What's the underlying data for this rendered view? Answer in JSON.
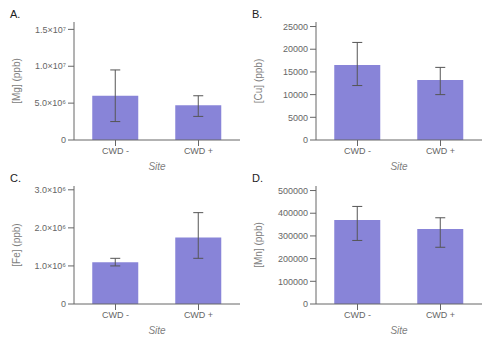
{
  "chart_data": [
    {
      "type": "bar",
      "title": "A.",
      "ylabel": "[Mg] (ppb)",
      "xlabel": "Site",
      "categories": [
        "CWD -",
        "CWD +"
      ],
      "values": [
        6000000,
        4700000
      ],
      "yerr_low": [
        3500000,
        1500000
      ],
      "yerr_high": [
        3500000,
        1300000
      ],
      "ylim": [
        0,
        16000000
      ],
      "yticks": [
        0,
        {
          "value": 5000000,
          "label": "5.0×10⁶"
        },
        {
          "value": 10000000,
          "label": "1.0×10⁷"
        },
        {
          "value": 15000000,
          "label": "1.5×10⁷"
        }
      ],
      "grid": false
    },
    {
      "type": "bar",
      "title": "B.",
      "ylabel": "[Cu] (ppb)",
      "xlabel": "Site",
      "categories": [
        "CWD -",
        "CWD +"
      ],
      "values": [
        16500,
        13200
      ],
      "yerr_low": [
        4500,
        3200
      ],
      "yerr_high": [
        5000,
        2800
      ],
      "ylim": [
        0,
        26000
      ],
      "yticks": [
        0,
        5000,
        10000,
        15000,
        20000,
        25000
      ],
      "grid": false
    },
    {
      "type": "bar",
      "title": "C.",
      "ylabel": "[Fe] (ppb)",
      "xlabel": "Site",
      "categories": [
        "CWD -",
        "CWD +"
      ],
      "values": [
        1100000,
        1750000
      ],
      "yerr_low": [
        100000,
        550000
      ],
      "yerr_high": [
        100000,
        650000
      ],
      "ylim": [
        0,
        3100000
      ],
      "yticks": [
        0,
        {
          "value": 1000000,
          "label": "1.0×10⁶"
        },
        {
          "value": 2000000,
          "label": "2.0×10⁶"
        },
        {
          "value": 3000000,
          "label": "3.0×10⁶"
        }
      ],
      "grid": false
    },
    {
      "type": "bar",
      "title": "D.",
      "ylabel": "[Mn] (ppb)",
      "xlabel": "Site",
      "categories": [
        "CWD -",
        "CWD +"
      ],
      "values": [
        370000,
        330000
      ],
      "yerr_low": [
        90000,
        80000
      ],
      "yerr_high": [
        60000,
        50000
      ],
      "ylim": [
        0,
        520000
      ],
      "yticks": [
        0,
        100000,
        200000,
        300000,
        400000,
        500000
      ],
      "grid": false
    }
  ]
}
